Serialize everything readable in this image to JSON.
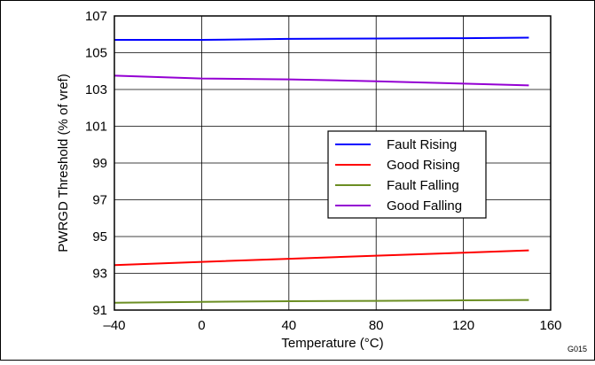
{
  "chart_data": {
    "type": "line",
    "title": "",
    "xlabel": "Temperature (°C)",
    "ylabel": "PWRGD Threshold (% of vref)",
    "xlim": [
      -40,
      160
    ],
    "ylim": [
      91,
      107
    ],
    "x_ticks": [
      "–40",
      "0",
      "40",
      "80",
      "120",
      "160"
    ],
    "y_ticks": [
      "91",
      "93",
      "95",
      "97",
      "99",
      "101",
      "103",
      "105",
      "107"
    ],
    "grid": true,
    "legend_position": "center-right",
    "series": [
      {
        "name": "Fault Rising",
        "color": "#0000ff",
        "x": [
          -40,
          0,
          40,
          80,
          120,
          150
        ],
        "y": [
          105.7,
          105.7,
          105.75,
          105.77,
          105.79,
          105.82
        ]
      },
      {
        "name": "Good Rising",
        "color": "#ff0000",
        "x": [
          -40,
          0,
          40,
          80,
          120,
          150
        ],
        "y": [
          93.45,
          93.62,
          93.79,
          93.96,
          94.12,
          94.25
        ]
      },
      {
        "name": "Fault Falling",
        "color": "#6b8e23",
        "x": [
          -40,
          0,
          40,
          80,
          120,
          150
        ],
        "y": [
          91.4,
          91.45,
          91.48,
          91.5,
          91.53,
          91.55
        ]
      },
      {
        "name": "Good Falling",
        "color": "#9400d3",
        "x": [
          -40,
          0,
          40,
          80,
          120,
          150
        ],
        "y": [
          103.75,
          103.6,
          103.55,
          103.45,
          103.32,
          103.22
        ]
      }
    ],
    "figure_id": "G015"
  }
}
